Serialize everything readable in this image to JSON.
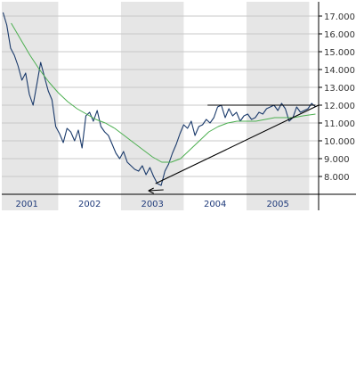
{
  "chart_data": {
    "type": "line",
    "title": "",
    "xlabel": "",
    "ylabel": "",
    "x_tick_labels": [
      "2001",
      "2002",
      "2003",
      "2004",
      "2005"
    ],
    "y_tick_labels": [
      "8.000",
      "9.000",
      "10.000",
      "11.000",
      "12.000",
      "13.000",
      "14.000",
      "15.000",
      "16.000",
      "17.000"
    ],
    "y_ticks": [
      8000,
      9000,
      10000,
      11000,
      12000,
      13000,
      14000,
      15000,
      16000,
      17000
    ],
    "xlim": [
      2000.6,
      2005.65
    ],
    "ylim": [
      7000,
      17800
    ],
    "grid": "horizontal",
    "alternating_year_bands": true,
    "colors": {
      "price": "#1a3a6b",
      "moving_average": "#4caf50",
      "trendline": "#000000",
      "band": "#e6e6e6",
      "grid": "#c8c8c8"
    },
    "series": [
      {
        "style": "price",
        "x": [
          2000.62,
          2000.68,
          2000.74,
          2000.8,
          2000.86,
          2000.92,
          2000.98,
          2001.04,
          2001.1,
          2001.16,
          2001.22,
          2001.28,
          2001.34,
          2001.4,
          2001.46,
          2001.52,
          2001.58,
          2001.64,
          2001.7,
          2001.76,
          2001.82,
          2001.88,
          2001.94,
          2002.0,
          2002.06,
          2002.12,
          2002.18,
          2002.24,
          2002.3,
          2002.36,
          2002.42,
          2002.48,
          2002.54,
          2002.6,
          2002.66,
          2002.72,
          2002.78,
          2002.84,
          2002.9,
          2002.96,
          2003.02,
          2003.08,
          2003.14,
          2003.2,
          2003.26,
          2003.32,
          2003.38,
          2003.44,
          2003.5,
          2003.56,
          2003.62,
          2003.68,
          2003.74,
          2003.8,
          2003.86,
          2003.92,
          2003.98,
          2004.04,
          2004.1,
          2004.16,
          2004.22,
          2004.28,
          2004.34,
          2004.4,
          2004.46,
          2004.52,
          2004.58,
          2004.64,
          2004.7,
          2004.76,
          2004.82,
          2004.88,
          2004.94,
          2005.0,
          2005.06,
          2005.12,
          2005.18,
          2005.24,
          2005.3,
          2005.36,
          2005.42,
          2005.48,
          2005.54,
          2005.6
        ],
        "values": [
          17200,
          16500,
          15200,
          14800,
          14200,
          13400,
          13800,
          12600,
          12000,
          13200,
          14400,
          13600,
          12800,
          12300,
          10800,
          10400,
          9900,
          10700,
          10500,
          10000,
          10600,
          9600,
          11400,
          11600,
          11100,
          11700,
          10800,
          10500,
          10300,
          9800,
          9300,
          9000,
          9400,
          8800,
          8600,
          8400,
          8300,
          8600,
          8100,
          8500,
          8000,
          7600,
          7500,
          8300,
          8700,
          9300,
          9800,
          10400,
          10900,
          10700,
          11100,
          10300,
          10800,
          10900,
          11200,
          11000,
          11300,
          11900,
          12000,
          11300,
          11800,
          11400,
          11600,
          11100,
          11400,
          11500,
          11200,
          11300,
          11600,
          11500,
          11800,
          11900,
          12000,
          11700,
          12100,
          11800,
          11100,
          11300,
          11900,
          11600,
          11700,
          11800,
          12100,
          11900
        ]
      },
      {
        "style": "moving_average",
        "x": [
          2000.75,
          2000.9,
          2001.05,
          2001.2,
          2001.35,
          2001.5,
          2001.65,
          2001.8,
          2001.95,
          2002.1,
          2002.25,
          2002.4,
          2002.55,
          2002.7,
          2002.85,
          2003.0,
          2003.15,
          2003.3,
          2003.45,
          2003.6,
          2003.75,
          2003.9,
          2004.05,
          2004.2,
          2004.35,
          2004.5,
          2004.65,
          2004.8,
          2004.95,
          2005.1,
          2005.25,
          2005.4,
          2005.6
        ],
        "values": [
          16600,
          15700,
          14800,
          14000,
          13300,
          12700,
          12200,
          11800,
          11500,
          11200,
          11000,
          10700,
          10300,
          9900,
          9500,
          9100,
          8800,
          8800,
          9000,
          9500,
          10000,
          10500,
          10800,
          11000,
          11100,
          11100,
          11100,
          11200,
          11300,
          11300,
          11300,
          11400,
          11500
        ]
      }
    ],
    "annotations": [
      {
        "type": "resistance",
        "x": [
          2003.88,
          2005.6
        ],
        "y": [
          12000,
          12000
        ]
      },
      {
        "type": "trendline",
        "x": [
          2003.05,
          2005.65
        ],
        "y": [
          7600,
          12000
        ]
      }
    ]
  }
}
